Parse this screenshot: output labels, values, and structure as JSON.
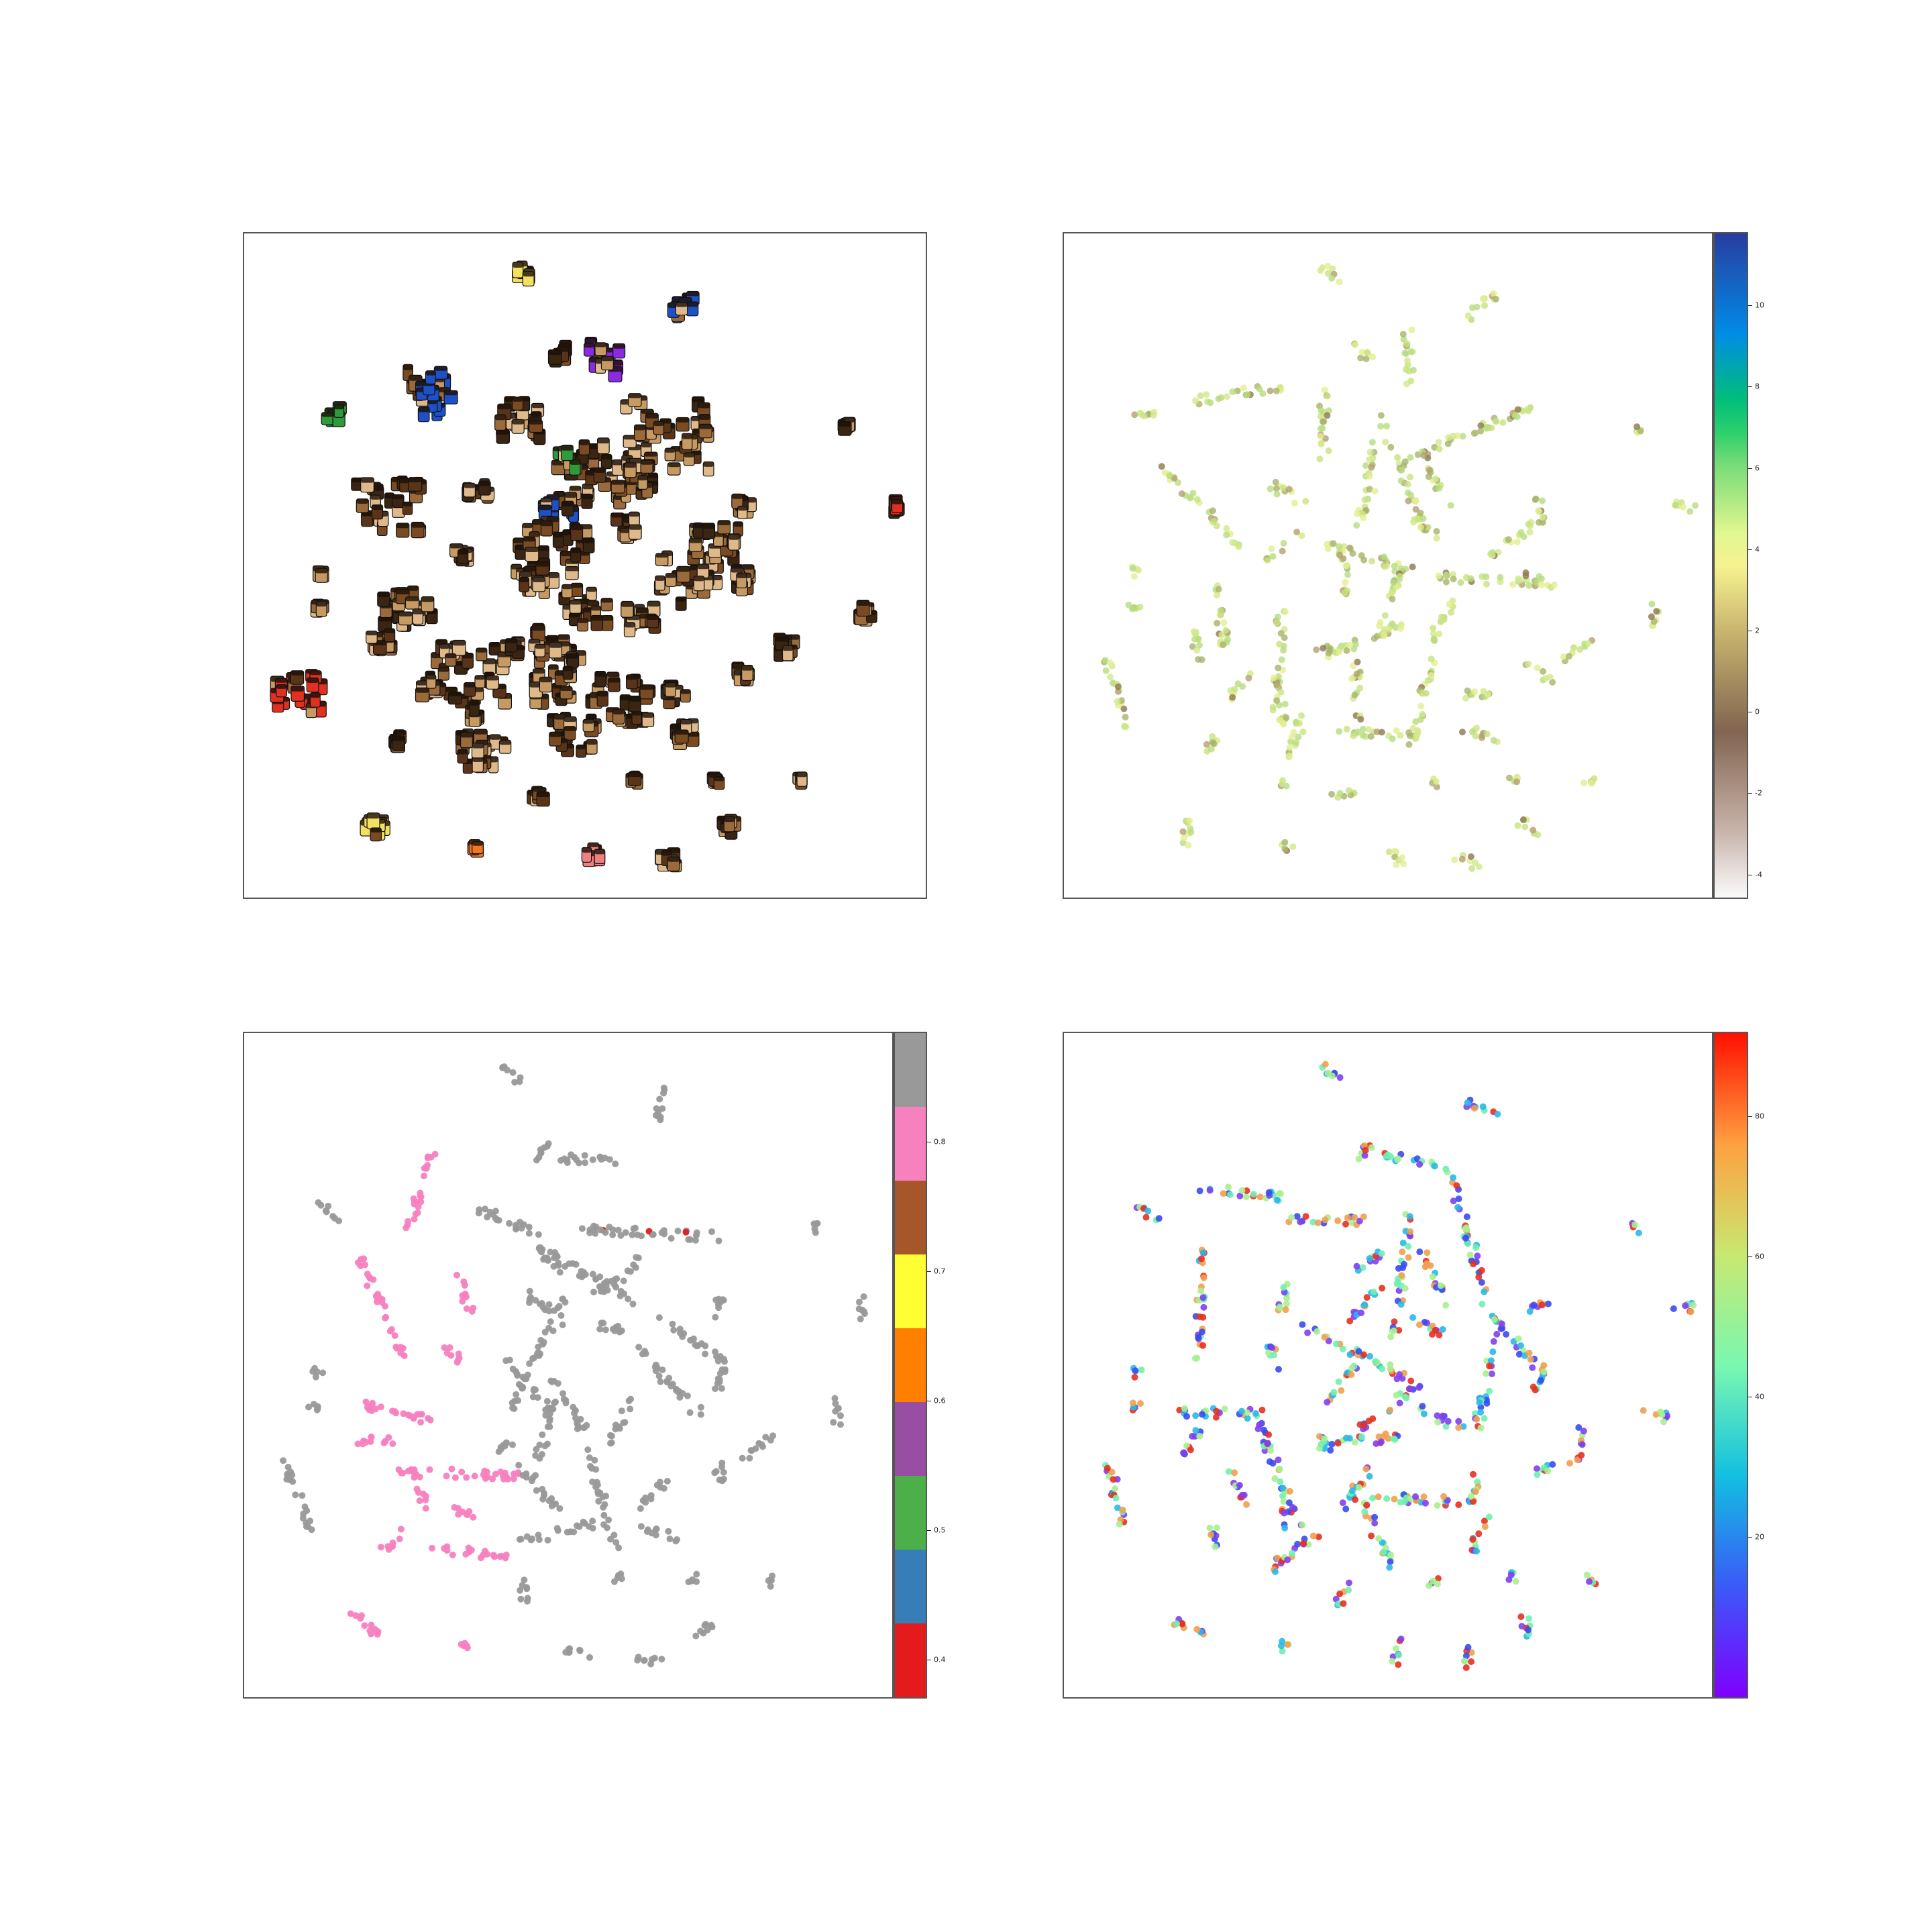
{
  "chart_data": [
    {
      "type": "scatter",
      "title": "",
      "xlabel": "",
      "ylabel": "",
      "grid": false,
      "legend": "none",
      "note_colors": [
        "#3a2412",
        "#5a3418",
        "#7a4a22",
        "#9b6a3a",
        "#c69a62",
        "#e0b98a",
        "#1e50c8",
        "#8a2be2",
        "#2e9a3a",
        "#e03020",
        "#f2e060",
        "#f08080",
        "#f07820",
        "#111111"
      ]
    },
    {
      "type": "scatter",
      "title": "",
      "xlabel": "",
      "ylabel": "",
      "grid": false,
      "colorbar": {
        "colormap": "terrain_r",
        "range": [
          -4.6,
          11.8
        ],
        "ticks": [
          "-4",
          "-2",
          "0",
          "2",
          "4",
          "6",
          "8",
          "10"
        ],
        "tick_values": [
          -4,
          -2,
          0,
          2,
          4,
          6,
          8,
          10
        ]
      },
      "point_colors": [
        "#e4ee90",
        "#d2e88a",
        "#c8e27e",
        "#b8dc80",
        "#a8b46a",
        "#8c7850",
        "#b4a070"
      ]
    },
    {
      "type": "scatter",
      "title": "",
      "xlabel": "",
      "ylabel": "",
      "grid": false,
      "colorbar": {
        "colormap": "Set1",
        "range": [
          0.37,
          0.885
        ],
        "ticks": [
          "0.4",
          "0.5",
          "0.6",
          "0.7",
          "0.8"
        ],
        "tick_values": [
          0.4,
          0.5,
          0.6,
          0.7,
          0.8
        ],
        "segments": [
          "#e41a1c",
          "#377eb8",
          "#4daf4a",
          "#984ea3",
          "#ff7f00",
          "#ffff33",
          "#a65628",
          "#f781bf",
          "#999999"
        ]
      },
      "series_colors": {
        "left": "#f781bf",
        "center": "#999999",
        "highlight": "#e41a1c"
      }
    },
    {
      "type": "scatter",
      "title": "",
      "xlabel": "",
      "ylabel": "",
      "grid": false,
      "colorbar": {
        "colormap": "rainbow",
        "range": [
          -3,
          92
        ],
        "ticks": [
          "20",
          "40",
          "60",
          "80"
        ],
        "tick_values": [
          20,
          40,
          60,
          80
        ]
      },
      "point_colors": [
        "#3a4af0",
        "#2ab8e8",
        "#70f0b0",
        "#a8f090",
        "#f0a050",
        "#e83020",
        "#8040f0"
      ]
    }
  ]
}
